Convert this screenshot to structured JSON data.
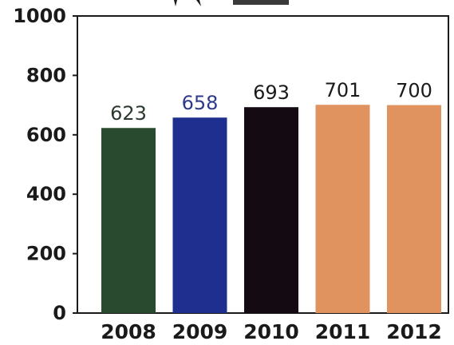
{
  "chart_data": {
    "type": "bar",
    "title": "",
    "xlabel": "",
    "ylabel": "",
    "categories": [
      "2008",
      "2009",
      "2010",
      "2011",
      "2012"
    ],
    "values": [
      623,
      658,
      693,
      701,
      700
    ],
    "data_labels": [
      "623",
      "658",
      "693",
      "701",
      "700"
    ],
    "ylim": [
      0,
      1000
    ],
    "yticks": [
      "0",
      "200",
      "400",
      "600",
      "800",
      "1000"
    ],
    "grid": false,
    "legend": "none",
    "colors": [
      "#2a4a30",
      "#1f2f8f",
      "#140a12",
      "#e0935f",
      "#e0935f"
    ],
    "label_colors": [
      "#2a3a2e",
      "#2d3a8c",
      "#1a1a1a",
      "#1a1a1a",
      "#1a1a1a"
    ]
  }
}
